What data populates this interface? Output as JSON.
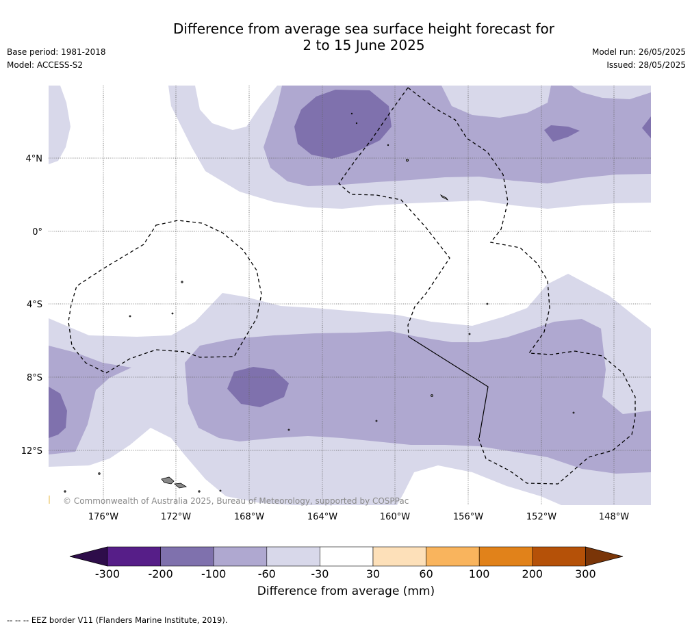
{
  "title": {
    "line1": "Difference from average sea surface height forecast for",
    "line2": "2 to 15 June 2025"
  },
  "meta_left": [
    "Base period: 1981-2018",
    "Model: ACCESS-S2"
  ],
  "meta_right": [
    "Model run: 26/05/2025",
    "Issued: 28/05/2025"
  ],
  "map": {
    "lat_labels": [
      "4°N",
      "0°",
      "4°S",
      "8°S",
      "12°S"
    ],
    "lon_labels": [
      "176°W",
      "172°W",
      "168°W",
      "164°W",
      "160°W",
      "156°W",
      "152°W",
      "148°W"
    ],
    "copyright": "© Commonwealth of Australia 2025, Bureau of Meteorology, supported by COSPPac"
  },
  "legend": {
    "label": "Difference from average (mm)",
    "ticks": [
      "-300",
      "-200",
      "-100",
      "-60",
      "-30",
      "30",
      "60",
      "100",
      "200",
      "300"
    ],
    "colors": [
      "#561e88",
      "#7f71ad",
      "#afa8d0",
      "#d8d8ea",
      "#ffffff",
      "#fde0b9",
      "#f9b45d",
      "#e1821a",
      "#b55108"
    ],
    "under_color": "#2e0d4a",
    "over_color": "#7a3508"
  },
  "footnote": "--  --  -- EEZ border V11 (Flanders Marine Institute, 2019)."
}
